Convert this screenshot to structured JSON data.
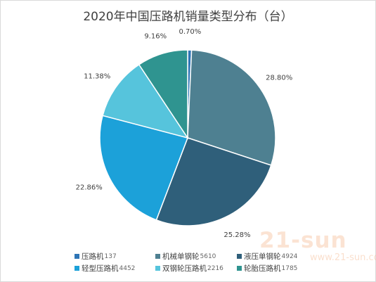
{
  "chart_data": {
    "type": "pie",
    "title": "2020年中国压路机销量类型分布（台）",
    "start_angle_deg": 0,
    "direction": "clockwise",
    "slices": [
      {
        "name": "压路机",
        "value": 137,
        "percent_label": "0.70%",
        "color": "#2e75b6"
      },
      {
        "name": "机械单钢轮",
        "value": 5610,
        "percent_label": "28.80%",
        "color": "#4e8091"
      },
      {
        "name": "液压单钢轮",
        "value": 4924,
        "percent_label": "25.28%",
        "color": "#2f5f7a"
      },
      {
        "name": "轻型压路机",
        "value": 4452,
        "percent_label": "22.86%",
        "color": "#1ca1d9"
      },
      {
        "name": "双钢轮压路机",
        "value": 2216,
        "percent_label": "11.38%",
        "color": "#56c4dc"
      },
      {
        "name": "轮胎压路机",
        "value": 1785,
        "percent_label": "9.16%",
        "color": "#2f9490"
      }
    ],
    "legend_position": "bottom"
  },
  "watermark": {
    "logo_text": "21-sun",
    "url_text": "www.21-sun.com"
  }
}
